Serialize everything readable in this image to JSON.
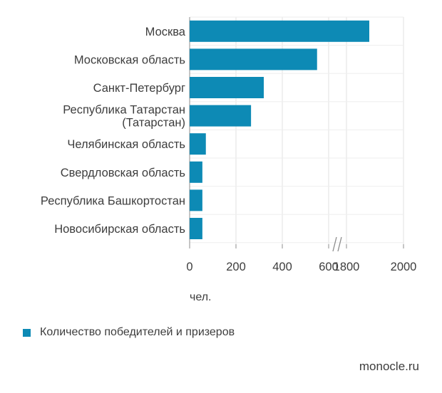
{
  "chart_data": {
    "type": "bar",
    "orientation": "horizontal",
    "categories": [
      [
        "Москва"
      ],
      [
        "Московская область"
      ],
      [
        "Санкт-Петербург"
      ],
      [
        "Республика Татарстан",
        "(Татарстан)"
      ],
      [
        "Челябинская область"
      ],
      [
        "Свердловская область"
      ],
      [
        "Республика Башкортостан"
      ],
      [
        "Новосибирская область"
      ]
    ],
    "series": [
      {
        "name": "Количество победителей и призеров",
        "values": [
          1880,
          550,
          320,
          265,
          70,
          55,
          55,
          55
        ]
      }
    ],
    "x_ticks": [
      "0",
      "200",
      "400",
      "600",
      "1800",
      "2000"
    ],
    "x_axis_break": {
      "from": 600,
      "to": 1800
    },
    "xlim": [
      0,
      2000
    ],
    "xlabel": "чел.",
    "grid": true,
    "legend_position": "bottom-left",
    "colors": {
      "bar": "#0d8ab5",
      "grid": "#e2e2e2",
      "axis": "#8c8c8c"
    }
  },
  "source": "monocle.ru"
}
